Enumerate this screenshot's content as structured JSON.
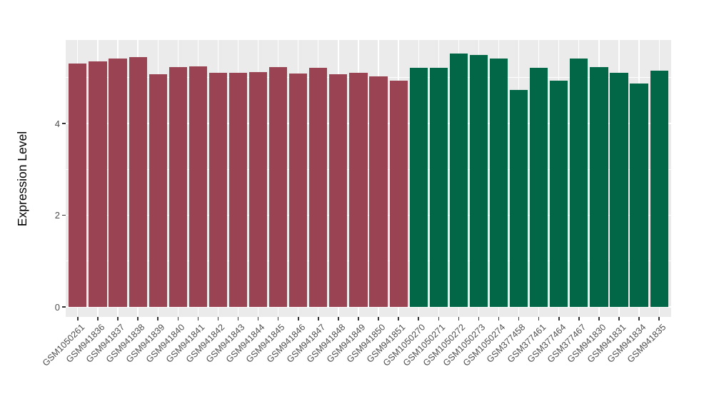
{
  "figure": {
    "background": "#ffffff",
    "panel_background": "#EBEBEB",
    "gridline_color": "#FFFFFF",
    "tick_mark_color": "#333333",
    "axis_text_color": "#4D4D4D",
    "axis_title_color": "#000000"
  },
  "chart_data": {
    "type": "bar",
    "title": "",
    "xlabel": "",
    "ylabel": "Expression Level",
    "ylim": [
      0,
      5.82
    ],
    "yticks": [
      0,
      2,
      4
    ],
    "ytick_labels": [
      "0",
      "2",
      "4"
    ],
    "minor_gridlines": [
      1,
      3,
      5
    ],
    "major_gridlines": [
      0,
      2,
      4
    ],
    "grid": true,
    "legend_position": "none",
    "group_colors": {
      "groupA": "#9A4453",
      "groupB": "#016747"
    },
    "categories": [
      "GSM1050261",
      "GSM941836",
      "GSM941837",
      "GSM941838",
      "GSM941839",
      "GSM941840",
      "GSM941841",
      "GSM941842",
      "GSM941843",
      "GSM941844",
      "GSM941845",
      "GSM941846",
      "GSM941847",
      "GSM941848",
      "GSM941849",
      "GSM941850",
      "GSM941851",
      "GSM1050270",
      "GSM1050271",
      "GSM1050272",
      "GSM1050273",
      "GSM1050274",
      "GSM377458",
      "GSM377461",
      "GSM377464",
      "GSM377467",
      "GSM941830",
      "GSM941831",
      "GSM941834",
      "GSM941835"
    ],
    "groups": [
      "groupA",
      "groupA",
      "groupA",
      "groupA",
      "groupA",
      "groupA",
      "groupA",
      "groupA",
      "groupA",
      "groupA",
      "groupA",
      "groupA",
      "groupA",
      "groupA",
      "groupA",
      "groupA",
      "groupA",
      "groupB",
      "groupB",
      "groupB",
      "groupB",
      "groupB",
      "groupB",
      "groupB",
      "groupB",
      "groupB",
      "groupB",
      "groupB",
      "groupB",
      "groupB"
    ],
    "series": [
      {
        "name": "Expression Level",
        "values": [
          5.31,
          5.35,
          5.42,
          5.45,
          5.07,
          5.23,
          5.25,
          5.1,
          5.11,
          5.12,
          5.23,
          5.09,
          5.21,
          5.07,
          5.11,
          5.02,
          4.94,
          5.22,
          5.22,
          5.52,
          5.49,
          5.42,
          4.73,
          5.22,
          4.94,
          5.42,
          5.23,
          5.1,
          4.87,
          5.15
        ]
      }
    ]
  }
}
